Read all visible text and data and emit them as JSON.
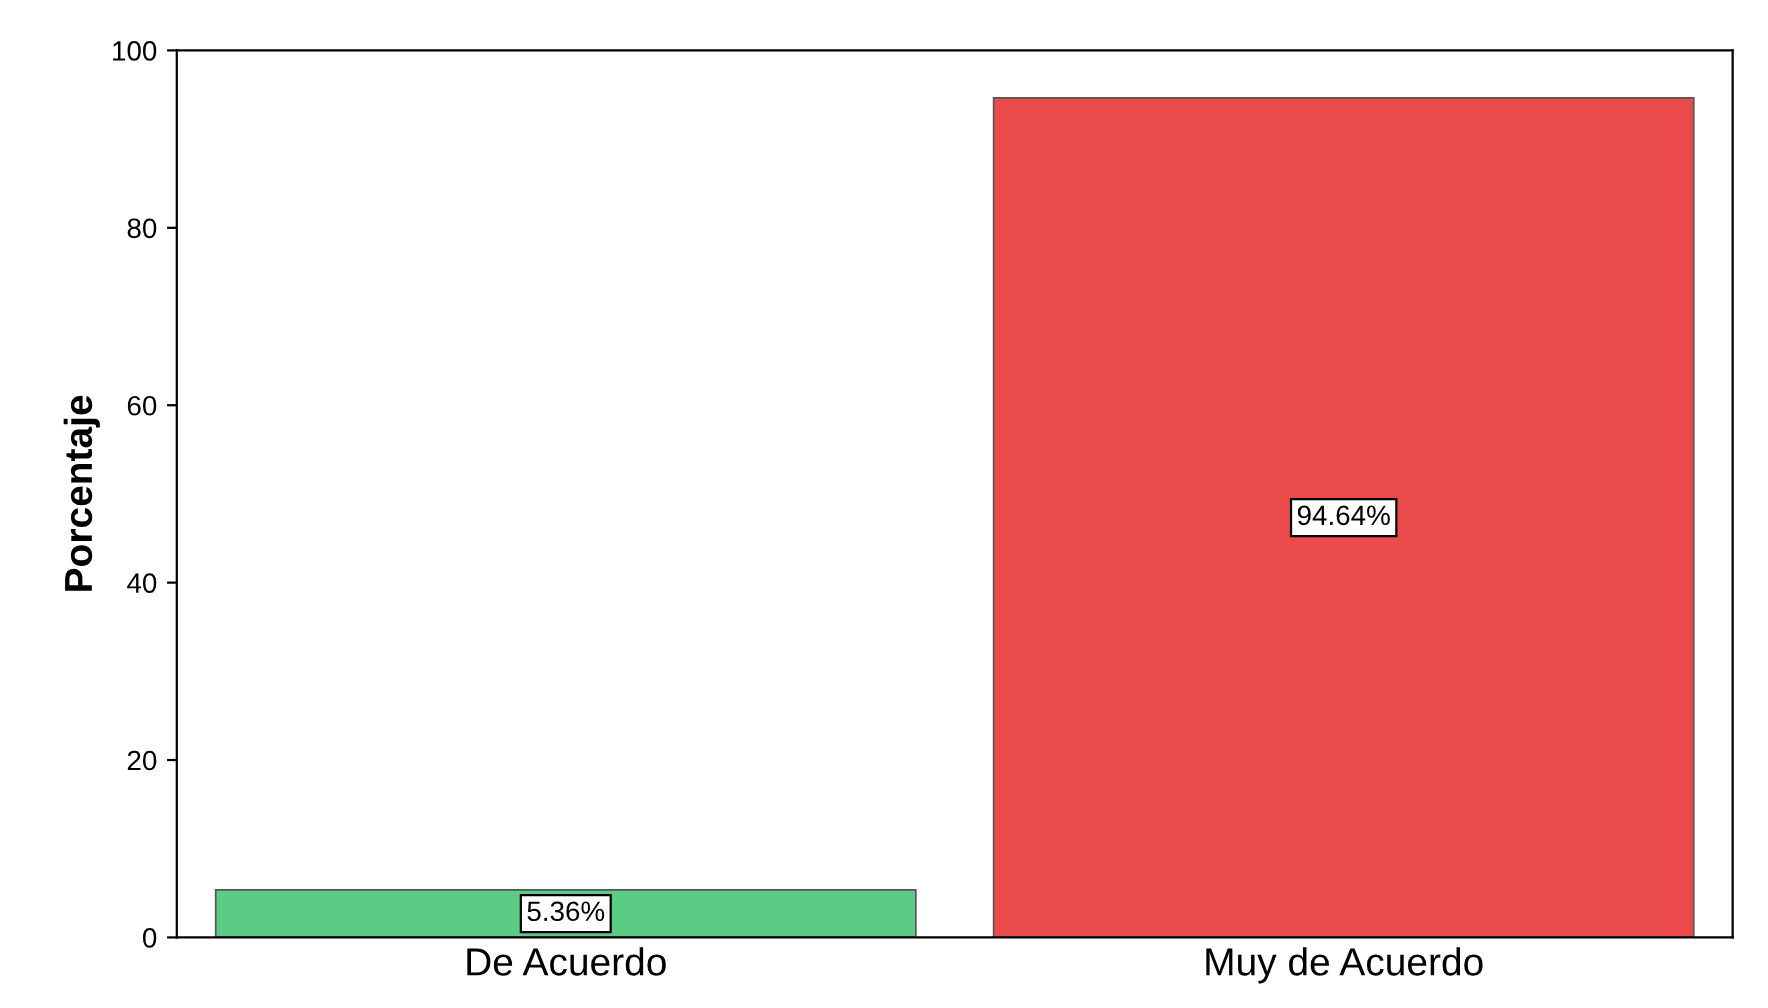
{
  "chart_data": {
    "type": "bar",
    "ylabel": "Porcentaje",
    "categories": [
      "De Acuerdo",
      "Muy de Acuerdo"
    ],
    "values": [
      5.36,
      94.64
    ],
    "colors": [
      "#5ccb86",
      "#ec4b4b"
    ],
    "value_labels": [
      "5.36%",
      "94.64%"
    ],
    "ylim": [
      0,
      100
    ],
    "yticks": [
      0,
      20,
      40,
      60,
      80,
      100
    ],
    "grid": false
  }
}
